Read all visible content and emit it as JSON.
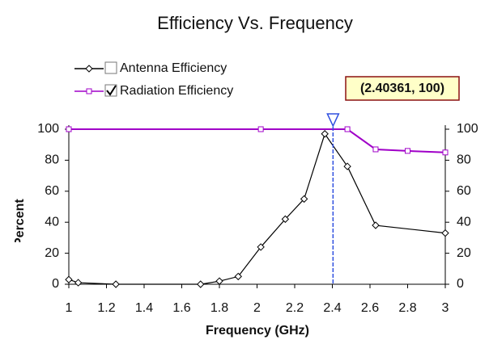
{
  "chart_data": {
    "type": "line",
    "title": "Efficiency Vs. Frequency",
    "xlabel": "Frequency (GHz)",
    "ylabel": "Percent",
    "xlim": [
      1,
      3
    ],
    "xticks": [
      1,
      1.2,
      1.4,
      1.6,
      1.8,
      2,
      2.2,
      2.4,
      2.6,
      2.8,
      3
    ],
    "ylim": [
      0,
      100
    ],
    "yticks": [
      0,
      20,
      40,
      60,
      80,
      100
    ],
    "y2lim": [
      0,
      100
    ],
    "y2ticks": [
      0,
      20,
      40,
      60,
      80,
      100
    ],
    "series": [
      {
        "name": "Antenna Efficiency",
        "color": "#000000",
        "marker": "diamond",
        "checked": false,
        "x": [
          1,
          1.05,
          1.25,
          1.7,
          1.8,
          1.9,
          2.02,
          2.15,
          2.25,
          2.36,
          2.48,
          2.63,
          3
        ],
        "values": [
          3,
          1,
          0,
          0,
          2,
          5,
          24,
          42,
          55,
          97,
          76,
          38,
          33
        ]
      },
      {
        "name": "Radiation Efficiency",
        "color": "#a000c8",
        "marker": "square",
        "checked": true,
        "x": [
          1,
          2.02,
          2.48,
          2.63,
          2.8,
          3
        ],
        "values": [
          100,
          100,
          100,
          87,
          86,
          85
        ]
      }
    ],
    "cursor": {
      "x": 2.40361,
      "label": "(2.40361, 100)",
      "color": "#3050e0"
    }
  }
}
